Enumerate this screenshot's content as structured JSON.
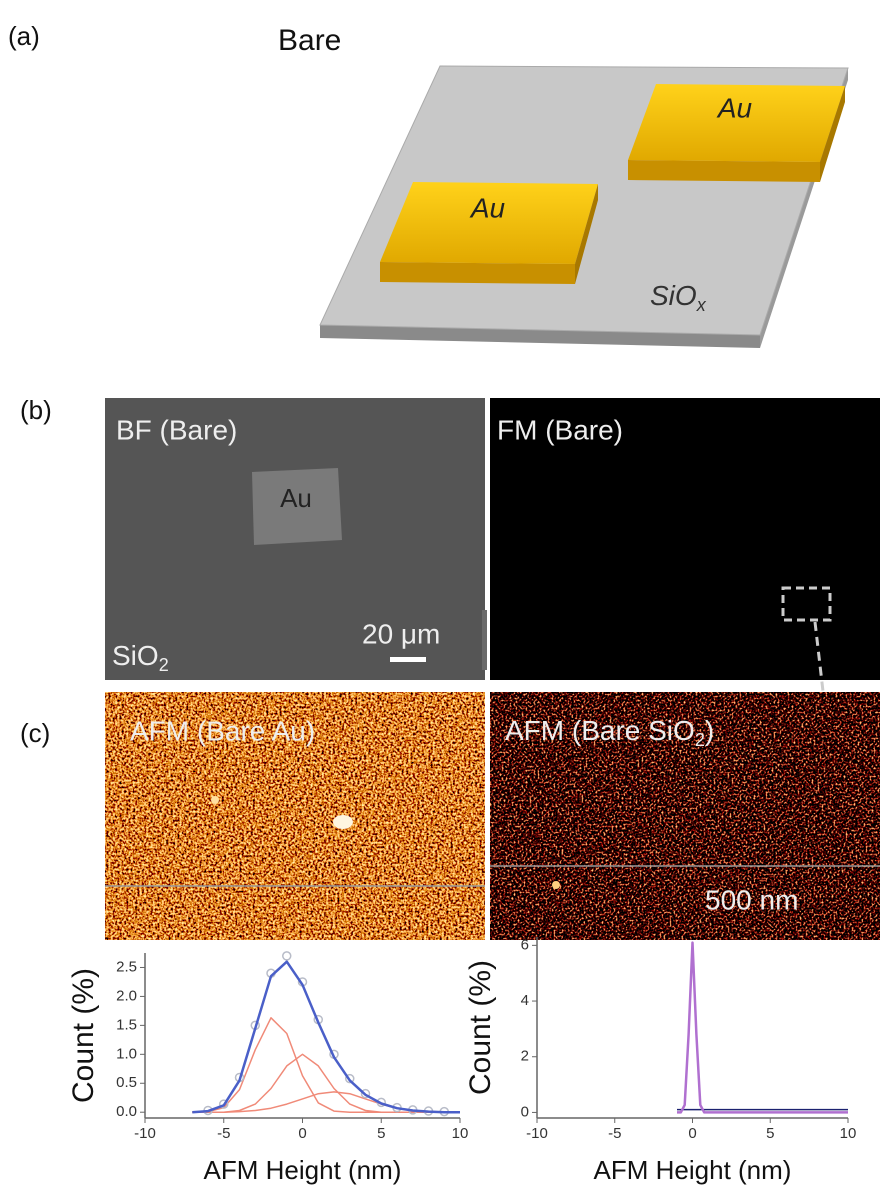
{
  "panel_a": {
    "label": "(a)",
    "title": "Bare",
    "pad_labels": [
      "Au",
      "Au"
    ],
    "substrate": {
      "text": "SiO",
      "sub": "x"
    }
  },
  "panel_b": {
    "label": "(b)",
    "bf_title": "BF (Bare)",
    "fm_title": "FM (Bare)",
    "pad_label": "Au",
    "substrate": {
      "text": "SiO",
      "sub": "2"
    },
    "scale_bar": "20 μm"
  },
  "panel_c": {
    "label": "(c)",
    "left_title": "AFM (Bare Au)",
    "right_title": {
      "text": "AFM (Bare SiO",
      "sub": "2",
      "tail": ")"
    },
    "scale_bar": "500 nm"
  },
  "chart_data": [
    {
      "type": "line",
      "xlabel": "AFM Height (nm)",
      "ylabel": "Count (%)",
      "x": [
        -7,
        -6,
        -5,
        -4,
        -3,
        -2,
        -1,
        0,
        1,
        2,
        3,
        4,
        5,
        6,
        7,
        8,
        9,
        10
      ],
      "series": [
        {
          "color": "#f08a78",
          "values": [
            0.0,
            0.01,
            0.08,
            0.39,
            1.08,
            1.63,
            1.36,
            0.63,
            0.16,
            0.02,
            0.0,
            0.0,
            0.0,
            0.0,
            0.0,
            0.0,
            0.0,
            0.0
          ]
        },
        {
          "color": "#f08a78",
          "values": [
            0.0,
            0.0,
            0.0,
            0.03,
            0.14,
            0.41,
            0.8,
            1.0,
            0.8,
            0.41,
            0.14,
            0.03,
            0.0,
            0.0,
            0.0,
            0.0,
            0.0,
            0.0
          ]
        },
        {
          "color": "#f08a78",
          "values": [
            0.0,
            0.0,
            0.0,
            0.01,
            0.03,
            0.07,
            0.14,
            0.23,
            0.32,
            0.35,
            0.32,
            0.23,
            0.14,
            0.07,
            0.03,
            0.01,
            0.0,
            0.0
          ]
        },
        {
          "color": "#b8bcc8",
          "style": "points",
          "values": [
            null,
            0.03,
            0.14,
            0.6,
            1.5,
            2.4,
            2.7,
            2.25,
            1.6,
            1.0,
            0.58,
            0.32,
            0.17,
            0.08,
            0.04,
            0.02,
            0.01,
            null
          ]
        },
        {
          "color": "#4a5fc8",
          "values": [
            0.0,
            0.02,
            0.12,
            0.55,
            1.45,
            2.35,
            2.6,
            2.2,
            1.55,
            0.95,
            0.55,
            0.3,
            0.15,
            0.07,
            0.03,
            0.01,
            0.0,
            0.0
          ]
        }
      ],
      "xlim": [
        -10,
        10
      ],
      "ylim": [
        -0.1,
        2.75
      ],
      "xticks": [
        -10,
        -5,
        0,
        5,
        10
      ],
      "yticks": [
        {
          "value": 0,
          "label": "0.0"
        },
        0.5,
        {
          "value": 1,
          "label": "1.0"
        },
        1.5,
        {
          "value": 2,
          "label": "2.0"
        },
        2.5
      ]
    },
    {
      "type": "line",
      "xlabel": "AFM Height (nm)",
      "ylabel": "Count (%)",
      "x": [
        -1,
        -0.75,
        -0.5,
        -0.25,
        0,
        0.25,
        0.5,
        0.75,
        1,
        2,
        3,
        4,
        5,
        6,
        7,
        8,
        9,
        10
      ],
      "series": [
        {
          "color": "#1c2270",
          "values": [
            0.1,
            0.1,
            0.1,
            0.1,
            0.1,
            0.1,
            0.1,
            0.1,
            0.1,
            0.1,
            0.1,
            0.1,
            0.1,
            0.1,
            0.1,
            0.1,
            0.1,
            0.1
          ]
        },
        {
          "color": "#b070d0",
          "values": [
            0.0,
            0.0,
            0.27,
            2.8,
            6.1,
            2.8,
            0.27,
            0.0,
            0.0,
            0.0,
            0.0,
            0.0,
            0.0,
            0.0,
            0.0,
            0.0,
            0.0,
            0.0
          ]
        }
      ],
      "xlim": [
        -10,
        10
      ],
      "ylim": [
        -0.2,
        6.3
      ],
      "xticks": [
        -10,
        -5,
        0,
        5,
        10
      ],
      "yticks": [
        0,
        2,
        4,
        6
      ]
    }
  ]
}
